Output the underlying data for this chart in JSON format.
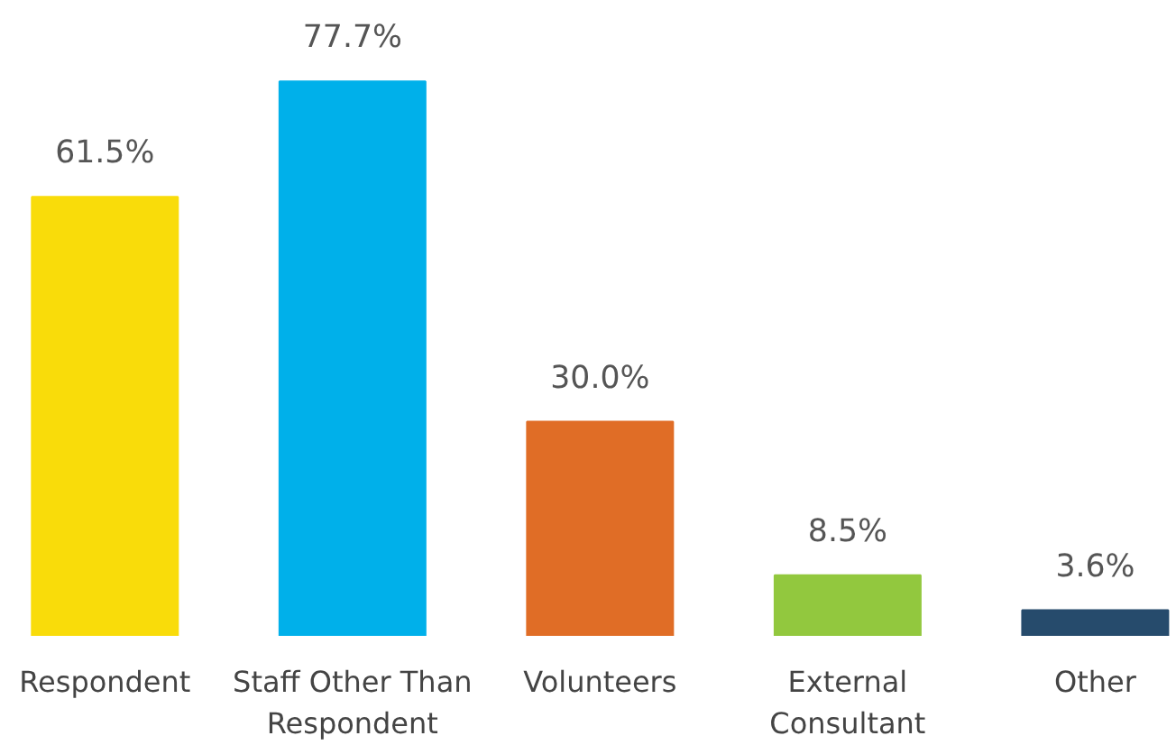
{
  "chart_data": {
    "type": "bar",
    "categories": [
      "Respondent",
      "Staff Other Than\nRespondent",
      "Volunteers",
      "External\nConsultant",
      "Other"
    ],
    "values": [
      61.5,
      77.7,
      30.0,
      8.5,
      3.6
    ],
    "colors": [
      "#f9dc0a",
      "#00b0ea",
      "#e06d26",
      "#92c83e",
      "#264b6c"
    ],
    "value_labels": [
      "61.5%",
      "77.7%",
      "30.0%",
      "8.5%",
      "3.6%"
    ],
    "grid": false
  }
}
